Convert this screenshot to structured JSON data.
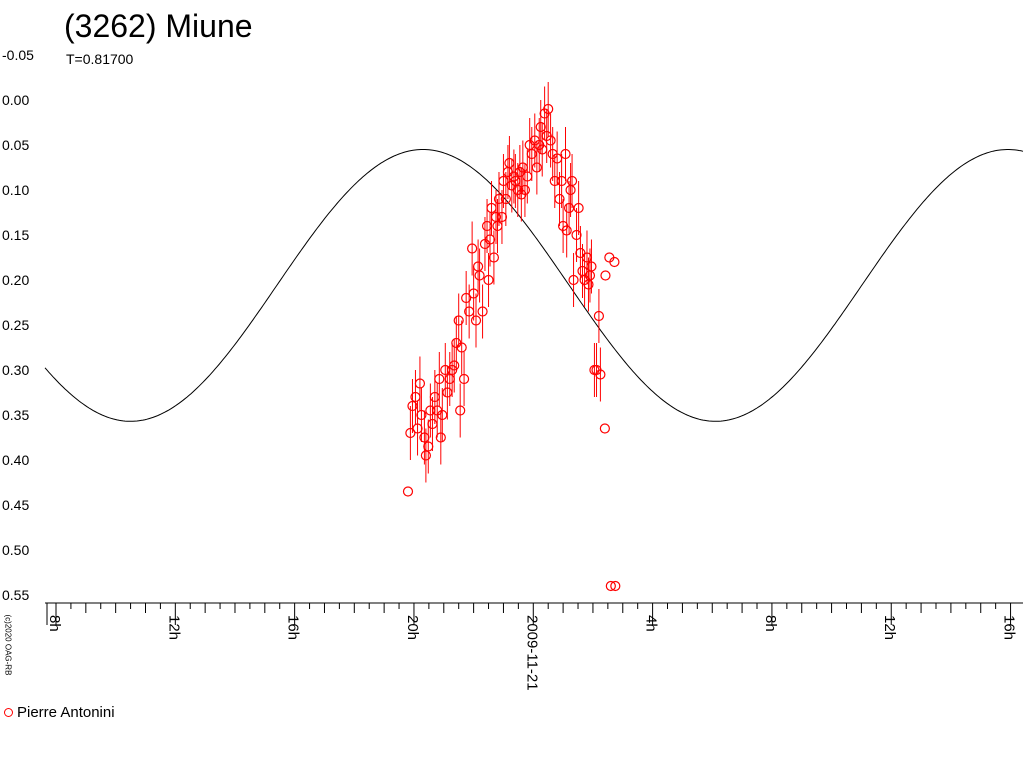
{
  "chart_data": {
    "type": "scatter",
    "title": "(3262) Miune",
    "subtitle": "T=0.81700",
    "copyright": "(c)2020 OAG-RB",
    "y_inverted": true,
    "ylim": [
      -0.05,
      0.56
    ],
    "y_ticks": [
      "-0.05",
      "0.00",
      "0.05",
      "0.10",
      "0.15",
      "0.20",
      "0.25",
      "0.30",
      "0.35",
      "0.40",
      "0.45",
      "0.50",
      "0.55"
    ],
    "y_tick_values": [
      -0.05,
      0.0,
      0.05,
      0.1,
      0.15,
      0.2,
      0.25,
      0.3,
      0.35,
      0.4,
      0.45,
      0.5,
      0.55
    ],
    "xlim_hours": [
      7.8,
      40.6
    ],
    "x_ticks": [
      {
        "label": "8h",
        "hour": 8
      },
      {
        "label": "12h",
        "hour": 12
      },
      {
        "label": "16h",
        "hour": 16
      },
      {
        "label": "20h",
        "hour": 20
      },
      {
        "label": "2009-11-21",
        "hour": 24
      },
      {
        "label": "4h",
        "hour": 28
      },
      {
        "label": "8h",
        "hour": 32
      },
      {
        "label": "12h",
        "hour": 36
      },
      {
        "label": "16h",
        "hour": 40
      }
    ],
    "fit_curve": {
      "period_hours": 19.608,
      "min_mag": 0.055,
      "max_mag": 0.357,
      "peak_hour_of_minimum_brightness": 10.5
    },
    "legend": [
      {
        "name": "Pierre Antonini",
        "color": "#ff0000",
        "marker": "circle"
      }
    ],
    "series": [
      {
        "name": "Pierre Antonini",
        "color": "#ff0000",
        "points": [
          [
            19.8,
            0.435,
            0
          ],
          [
            19.88,
            0.37,
            0.03
          ],
          [
            19.95,
            0.34,
            0.03
          ],
          [
            20.05,
            0.33,
            0.03
          ],
          [
            20.12,
            0.365,
            0.03
          ],
          [
            20.2,
            0.315,
            0.03
          ],
          [
            20.25,
            0.35,
            0.03
          ],
          [
            20.35,
            0.375,
            0.03
          ],
          [
            20.4,
            0.395,
            0.03
          ],
          [
            20.48,
            0.385,
            0.03
          ],
          [
            20.55,
            0.345,
            0.03
          ],
          [
            20.62,
            0.36,
            0.03
          ],
          [
            20.7,
            0.33,
            0.03
          ],
          [
            20.78,
            0.345,
            0.03
          ],
          [
            20.85,
            0.31,
            0.03
          ],
          [
            20.9,
            0.375,
            0.03
          ],
          [
            20.95,
            0.35,
            0.03
          ],
          [
            21.05,
            0.3,
            0.03
          ],
          [
            21.12,
            0.325,
            0.03
          ],
          [
            21.2,
            0.31,
            0.03
          ],
          [
            21.28,
            0.3,
            0.03
          ],
          [
            21.35,
            0.295,
            0.03
          ],
          [
            21.42,
            0.27,
            0.03
          ],
          [
            21.5,
            0.245,
            0.03
          ],
          [
            21.55,
            0.345,
            0.03
          ],
          [
            21.6,
            0.275,
            0.03
          ],
          [
            21.68,
            0.31,
            0.03
          ],
          [
            21.75,
            0.22,
            0.03
          ],
          [
            21.85,
            0.235,
            0.03
          ],
          [
            21.95,
            0.165,
            0.03
          ],
          [
            22.0,
            0.215,
            0.03
          ],
          [
            22.08,
            0.245,
            0.03
          ],
          [
            22.15,
            0.185,
            0.03
          ],
          [
            22.2,
            0.195,
            0.03
          ],
          [
            22.3,
            0.235,
            0.03
          ],
          [
            22.38,
            0.16,
            0.03
          ],
          [
            22.45,
            0.14,
            0.03
          ],
          [
            22.5,
            0.2,
            0.03
          ],
          [
            22.55,
            0.155,
            0.03
          ],
          [
            22.6,
            0.12,
            0.03
          ],
          [
            22.68,
            0.175,
            0.03
          ],
          [
            22.75,
            0.13,
            0.03
          ],
          [
            22.8,
            0.14,
            0.03
          ],
          [
            22.85,
            0.11,
            0.03
          ],
          [
            22.95,
            0.13,
            0.03
          ],
          [
            23.0,
            0.09,
            0.03
          ],
          [
            23.08,
            0.11,
            0.03
          ],
          [
            23.15,
            0.08,
            0.03
          ],
          [
            23.2,
            0.07,
            0.03
          ],
          [
            23.28,
            0.095,
            0.03
          ],
          [
            23.35,
            0.085,
            0.03
          ],
          [
            23.4,
            0.09,
            0.03
          ],
          [
            23.48,
            0.1,
            0.03
          ],
          [
            23.55,
            0.08,
            0.03
          ],
          [
            23.6,
            0.105,
            0.03
          ],
          [
            23.65,
            0.075,
            0.03
          ],
          [
            23.72,
            0.1,
            0.03
          ],
          [
            23.8,
            0.085,
            0.03
          ],
          [
            23.88,
            0.05,
            0.03
          ],
          [
            23.95,
            0.06,
            0.03
          ],
          [
            24.05,
            0.045,
            0.03
          ],
          [
            24.12,
            0.075,
            0.03
          ],
          [
            24.2,
            0.05,
            0.03
          ],
          [
            24.25,
            0.03,
            0.03
          ],
          [
            24.3,
            0.055,
            0.03
          ],
          [
            24.38,
            0.015,
            0.03
          ],
          [
            24.45,
            0.04,
            0.03
          ],
          [
            24.5,
            0.01,
            0.03
          ],
          [
            24.58,
            0.045,
            0.03
          ],
          [
            24.65,
            0.06,
            0.03
          ],
          [
            24.72,
            0.09,
            0.03
          ],
          [
            24.8,
            0.065,
            0.03
          ],
          [
            24.88,
            0.11,
            0.03
          ],
          [
            24.95,
            0.09,
            0.03
          ],
          [
            25.0,
            0.14,
            0.03
          ],
          [
            25.08,
            0.06,
            0.03
          ],
          [
            25.12,
            0.145,
            0.03
          ],
          [
            25.2,
            0.12,
            0.03
          ],
          [
            25.25,
            0.1,
            0.03
          ],
          [
            25.3,
            0.09,
            0.03
          ],
          [
            25.35,
            0.2,
            0.03
          ],
          [
            25.45,
            0.15,
            0.03
          ],
          [
            25.52,
            0.12,
            0.03
          ],
          [
            25.58,
            0.17,
            0.03
          ],
          [
            25.65,
            0.19,
            0.03
          ],
          [
            25.72,
            0.2,
            0.03
          ],
          [
            25.8,
            0.175,
            0.03
          ],
          [
            25.85,
            0.205,
            0.03
          ],
          [
            25.9,
            0.195,
            0.03
          ],
          [
            25.95,
            0.185,
            0.03
          ],
          [
            26.05,
            0.3,
            0.03
          ],
          [
            26.12,
            0.3,
            0.03
          ],
          [
            26.2,
            0.24,
            0.03
          ],
          [
            26.25,
            0.305,
            0.03
          ],
          [
            26.4,
            0.365,
            0
          ],
          [
            26.42,
            0.195,
            0
          ],
          [
            26.55,
            0.175,
            0
          ],
          [
            26.6,
            0.54,
            0
          ],
          [
            26.72,
            0.18,
            0
          ],
          [
            26.75,
            0.54,
            0
          ]
        ]
      }
    ]
  }
}
